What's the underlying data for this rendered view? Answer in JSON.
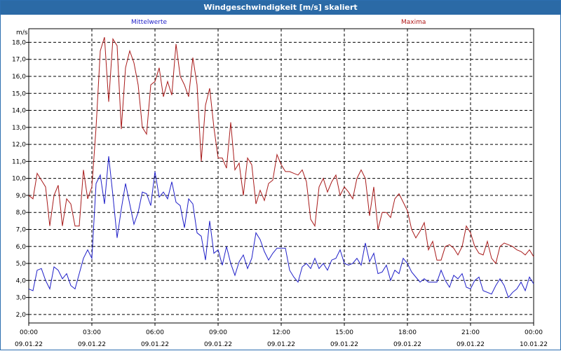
{
  "window": {
    "title": "Windgeschwindigkeit [m/s] skaliert"
  },
  "chart_data": {
    "type": "line",
    "title": "Windgeschwindigkeit [m/s] skaliert",
    "ylabel": "m/s",
    "ylim": [
      1.5,
      18.8
    ],
    "xlim": [
      0,
      24
    ],
    "yticks": [
      "2,0",
      "3,0",
      "4,0",
      "5,0",
      "6,0",
      "7,0",
      "8,0",
      "9,0",
      "10,0",
      "11,0",
      "12,0",
      "13,0",
      "14,0",
      "15,0",
      "16,0",
      "17,0",
      "18,0"
    ],
    "xticks": [
      {
        "time": "00:00",
        "date": "09.01.22"
      },
      {
        "time": "03:00",
        "date": "09.01.22"
      },
      {
        "time": "06:00",
        "date": "09.01.22"
      },
      {
        "time": "09:00",
        "date": "09.01.22"
      },
      {
        "time": "12:00",
        "date": "09.01.22"
      },
      {
        "time": "15:00",
        "date": "09.01.22"
      },
      {
        "time": "18:00",
        "date": "09.01.22"
      },
      {
        "time": "21:00",
        "date": "09.01.22"
      },
      {
        "time": "00:00",
        "date": "10.01.22"
      }
    ],
    "grid": true,
    "series": [
      {
        "name": "Mittelwerte",
        "color": "#1f1fc8",
        "x": [
          0.0,
          0.2,
          0.4,
          0.6,
          0.8,
          1.0,
          1.2,
          1.4,
          1.6,
          1.8,
          2.0,
          2.2,
          2.4,
          2.6,
          2.8,
          3.0,
          3.2,
          3.4,
          3.6,
          3.8,
          4.0,
          4.2,
          4.4,
          4.6,
          4.8,
          5.0,
          5.2,
          5.4,
          5.6,
          5.8,
          6.0,
          6.2,
          6.4,
          6.6,
          6.8,
          7.0,
          7.2,
          7.4,
          7.6,
          7.8,
          8.0,
          8.2,
          8.4,
          8.6,
          8.8,
          9.0,
          9.2,
          9.4,
          9.6,
          9.8,
          10.0,
          10.2,
          10.4,
          10.6,
          10.8,
          11.0,
          11.2,
          11.4,
          11.6,
          11.8,
          12.0,
          12.2,
          12.4,
          12.6,
          12.8,
          13.0,
          13.2,
          13.4,
          13.6,
          13.8,
          14.0,
          14.2,
          14.4,
          14.6,
          14.8,
          15.0,
          15.2,
          15.4,
          15.6,
          15.8,
          16.0,
          16.2,
          16.4,
          16.6,
          16.8,
          17.0,
          17.2,
          17.4,
          17.6,
          17.8,
          18.0,
          18.2,
          18.4,
          18.6,
          18.8,
          19.0,
          19.2,
          19.4,
          19.6,
          19.8,
          20.0,
          20.2,
          20.4,
          20.6,
          20.8,
          21.0,
          21.2,
          21.4,
          21.6,
          21.8,
          22.0,
          22.2,
          22.4,
          22.6,
          22.8,
          23.0,
          23.2,
          23.4,
          23.6,
          23.8,
          24.0
        ],
        "values": [
          3.5,
          3.4,
          4.6,
          4.7,
          4.0,
          3.5,
          4.8,
          4.6,
          4.1,
          4.4,
          3.7,
          3.5,
          4.4,
          5.3,
          5.8,
          5.3,
          9.7,
          10.2,
          8.5,
          11.3,
          9.0,
          6.5,
          8.2,
          9.7,
          8.5,
          7.3,
          8.0,
          9.2,
          9.1,
          8.4,
          10.4,
          8.9,
          9.2,
          8.8,
          9.8,
          8.6,
          8.4,
          7.1,
          8.8,
          8.5,
          6.8,
          6.6,
          5.2,
          7.5,
          5.6,
          5.8,
          4.9,
          6.0,
          5.0,
          4.3,
          5.1,
          5.5,
          4.7,
          5.3,
          6.8,
          6.4,
          5.7,
          5.2,
          5.6,
          5.9,
          5.9,
          5.9,
          4.6,
          4.2,
          3.9,
          4.8,
          5.0,
          4.7,
          5.3,
          4.7,
          5.0,
          4.6,
          5.2,
          5.3,
          5.8,
          5.0,
          4.9,
          5.0,
          5.3,
          4.9,
          6.2,
          5.1,
          5.6,
          4.4,
          4.5,
          4.9,
          4.0,
          4.6,
          4.4,
          5.3,
          5.0,
          4.5,
          4.2,
          3.9,
          4.1,
          3.9,
          3.9,
          3.9,
          4.6,
          4.0,
          3.6,
          4.3,
          4.1,
          4.4,
          3.6,
          3.5,
          4.0,
          4.2,
          3.4,
          3.3,
          3.2,
          3.7,
          4.1,
          3.7,
          3.0,
          3.3,
          3.5,
          3.9,
          3.4,
          4.2,
          3.8
        ],
        "style": "sample"
      }
    ]
  }
}
